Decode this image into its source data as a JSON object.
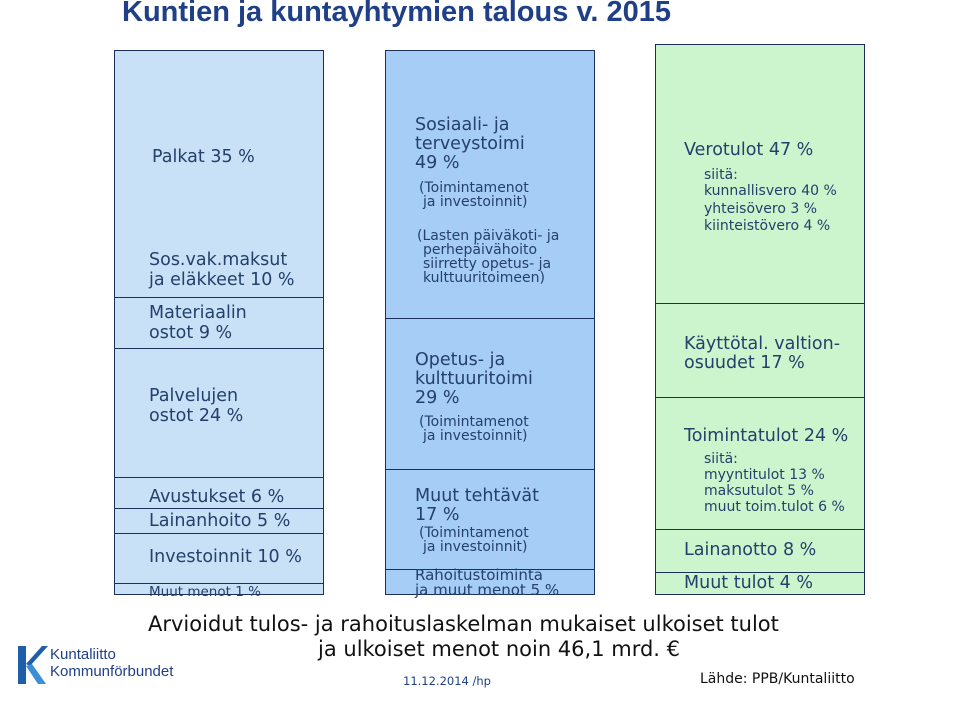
{
  "title": "Kuntien ja kuntayhtymien talous v. 2015",
  "expenses": {
    "palkat": "Palkat 35 %",
    "sosvak_1": "Sos.vak.maksut",
    "sosvak_2": "ja eläkkeet 10 %",
    "materiaalin_1": "Materiaalin",
    "materiaalin_2": "ostot 9 %",
    "palvelujen_1": "Palvelujen",
    "palvelujen_2": "ostot  24 %",
    "avustukset": "Avustukset 6 %",
    "lainanhoito": "Lainanhoito 5 %",
    "investoinnit": "Investoinnit 10 %",
    "muut_menot": "Muut menot 1 %"
  },
  "functions": {
    "sote_1": "Sosiaali- ja",
    "sote_2": "terveystoimi",
    "sote_3": "49 %",
    "sote_note_1": "(Toimintamenot",
    "sote_note_2": "ja investoinnit)",
    "sote_extra_1": "(Lasten päiväkoti- ja",
    "sote_extra_2": "perhepäivähoito",
    "sote_extra_3": "siirretty opetus- ja",
    "sote_extra_4": "kulttuuritoimeen)",
    "opetus_1": "Opetus- ja",
    "opetus_2": "kulttuuritoimi",
    "opetus_3": "29 %",
    "opetus_note_1": "(Toimintamenot",
    "opetus_note_2": "ja investoinnit)",
    "muut_1": "Muut tehtävät",
    "muut_2": "17 %",
    "muut_note_1": "(Toimintamenot",
    "muut_note_2": "ja investoinnit)",
    "rahoitus_1": "Rahoitustoiminta",
    "rahoitus_2": "ja muut menot 5 %"
  },
  "revenues": {
    "verotulot": "Verotulot 47 %",
    "siita_1": "siitä:",
    "kunnallisvero": "kunnallisvero 40 %",
    "yhteisovero": "yhteisövero 3 %",
    "kiinteistovero": "kiinteistövero 4 %",
    "valtion_1": "Käyttötal. valtion-",
    "valtion_2": "osuudet 17 %",
    "toimintatulot": "Toimintatulot 24 %",
    "siita_2": "siitä:",
    "myyntitulot": "myyntitulot 13 %",
    "maksutulot": "maksutulot 5 %",
    "muut_toim": "muut toim.tulot 6 %",
    "lainanotto": "Lainanotto 8 %",
    "muut_tulot": "Muut tulot 4 %"
  },
  "footer": {
    "line1": "Arvioidut tulos- ja rahoituslaskelman mukaiset ulkoiset tulot",
    "line2": "ja ulkoiset menot noin 46,1 mrd. €",
    "date": "11.12.2014 /hp",
    "source": "Lähde: PPB/Kuntaliitto",
    "logo_1": "Kuntaliitto",
    "logo_2": "Kommunförbundet"
  },
  "colors": {
    "expenses": "#c8e1f7",
    "functions": "#a5cdf5",
    "revenues": "#cdf5cd",
    "title": "#1f3f86"
  }
}
